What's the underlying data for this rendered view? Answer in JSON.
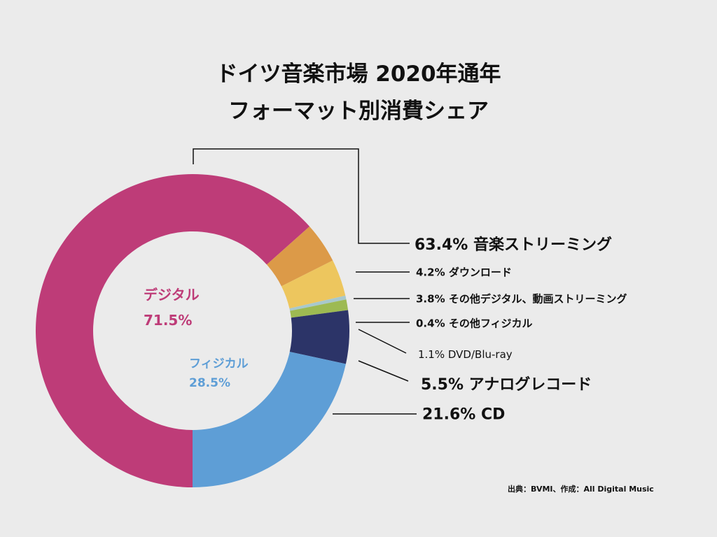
{
  "chart_data": {
    "type": "pie",
    "donut": true,
    "title": [
      "ドイツ音楽市場 2020年通年",
      "フォーマット別消費シェア"
    ],
    "start": "bottom, clockwise",
    "slices": [
      {
        "label": "音楽ストリーミング",
        "value": 63.4,
        "text": "63.4% 音楽ストリーミング",
        "color": "#BE3C78",
        "group": "digital"
      },
      {
        "label": "ダウンロード",
        "value": 4.2,
        "text": "4.2% ダウンロード",
        "color": "#DC9A48",
        "group": "digital"
      },
      {
        "label": "その他デジタル、動画ストリーミング",
        "value": 3.8,
        "text": "3.8% その他デジタル、動画ストリーミング",
        "color": "#EDC65E",
        "group": "digital"
      },
      {
        "label": "その他フィジカル",
        "value": 0.4,
        "text": "0.4% その他フィジカル",
        "color": "#A8C8CC",
        "group": "physical"
      },
      {
        "label": "DVD/Blu-ray",
        "value": 1.1,
        "text": "1.1% DVD/Blu-ray",
        "color": "#9DBA52",
        "group": "physical"
      },
      {
        "label": "アナログレコード",
        "value": 5.5,
        "text": "5.5% アナログレコード",
        "color": "#2C3468",
        "group": "physical"
      },
      {
        "label": "CD",
        "value": 21.6,
        "text": "21.6% CD",
        "color": "#5E9ED6",
        "group": "physical"
      }
    ],
    "groups": {
      "digital": {
        "label": "デジタル",
        "value": "71.5%",
        "color": "#BE3C78"
      },
      "physical": {
        "label": "フィジカル",
        "value": "28.5%",
        "color": "#5E9ED6"
      }
    },
    "source": "出典：BVMI、作成：All Digital Music"
  }
}
